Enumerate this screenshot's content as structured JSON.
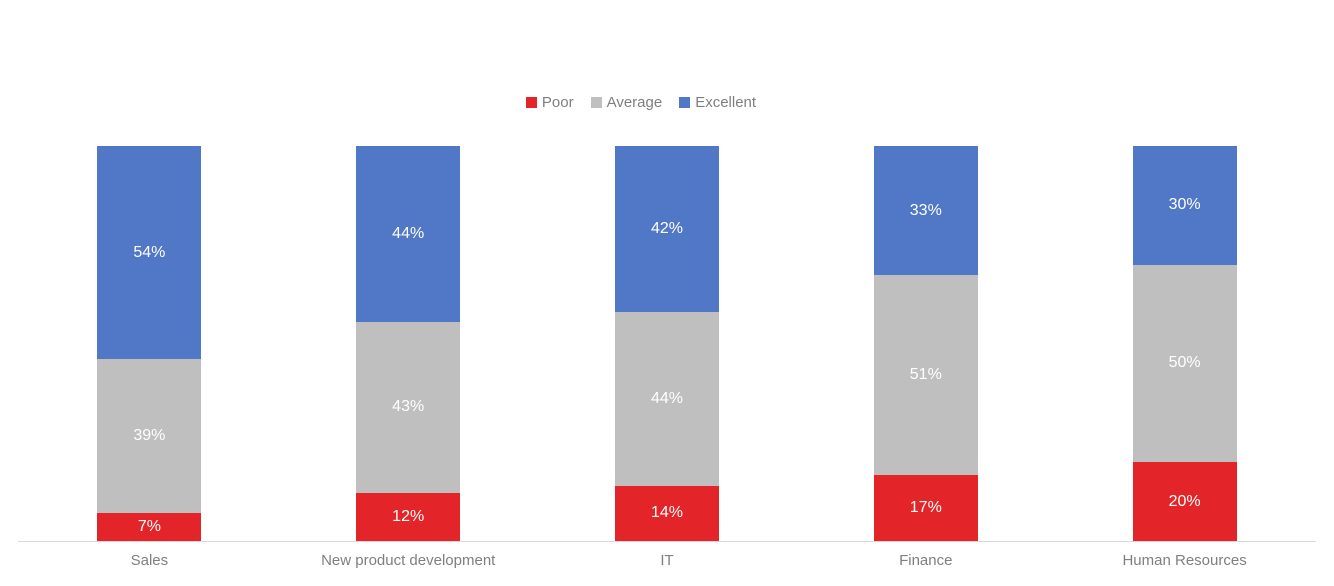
{
  "colors": {
    "background": "#ffffff",
    "poor": "#e32429",
    "average": "#bfbfbf",
    "excellent": "#5178c6",
    "data_label_text": "#ffffff",
    "axis_line": "#d9d9d9",
    "category_text": "#7f7f7f",
    "legend_text": "#7f7f7f"
  },
  "chart_data": {
    "type": "bar",
    "subtype": "stacked-100-percent-column",
    "title": "",
    "xlabel": "",
    "ylabel": "",
    "grid": false,
    "y_axis_visible": false,
    "x_axis_line_visible": true,
    "legend": {
      "position": "top",
      "entries": [
        "Poor",
        "Average",
        "Excellent"
      ]
    },
    "categories": [
      "Sales",
      "New product development",
      "IT",
      "Finance",
      "Human Resources"
    ],
    "series": [
      {
        "name": "Poor",
        "color": "#e32429",
        "values": [
          7,
          12,
          14,
          17,
          20
        ],
        "labels": [
          "7%",
          "12%",
          "14%",
          "17%",
          "20%"
        ]
      },
      {
        "name": "Average",
        "color": "#bfbfbf",
        "values": [
          39,
          43,
          44,
          51,
          50
        ],
        "labels": [
          "39%",
          "43%",
          "44%",
          "51%",
          "50%"
        ]
      },
      {
        "name": "Excellent",
        "color": "#5178c6",
        "values": [
          54,
          44,
          42,
          33,
          30
        ],
        "labels": [
          "54%",
          "44%",
          "42%",
          "33%",
          "30%"
        ]
      }
    ],
    "stack_order_bottom_to_top": [
      "Poor",
      "Average",
      "Excellent"
    ],
    "data_labels": {
      "visible": true,
      "format": "percent",
      "color": "#ffffff"
    }
  }
}
